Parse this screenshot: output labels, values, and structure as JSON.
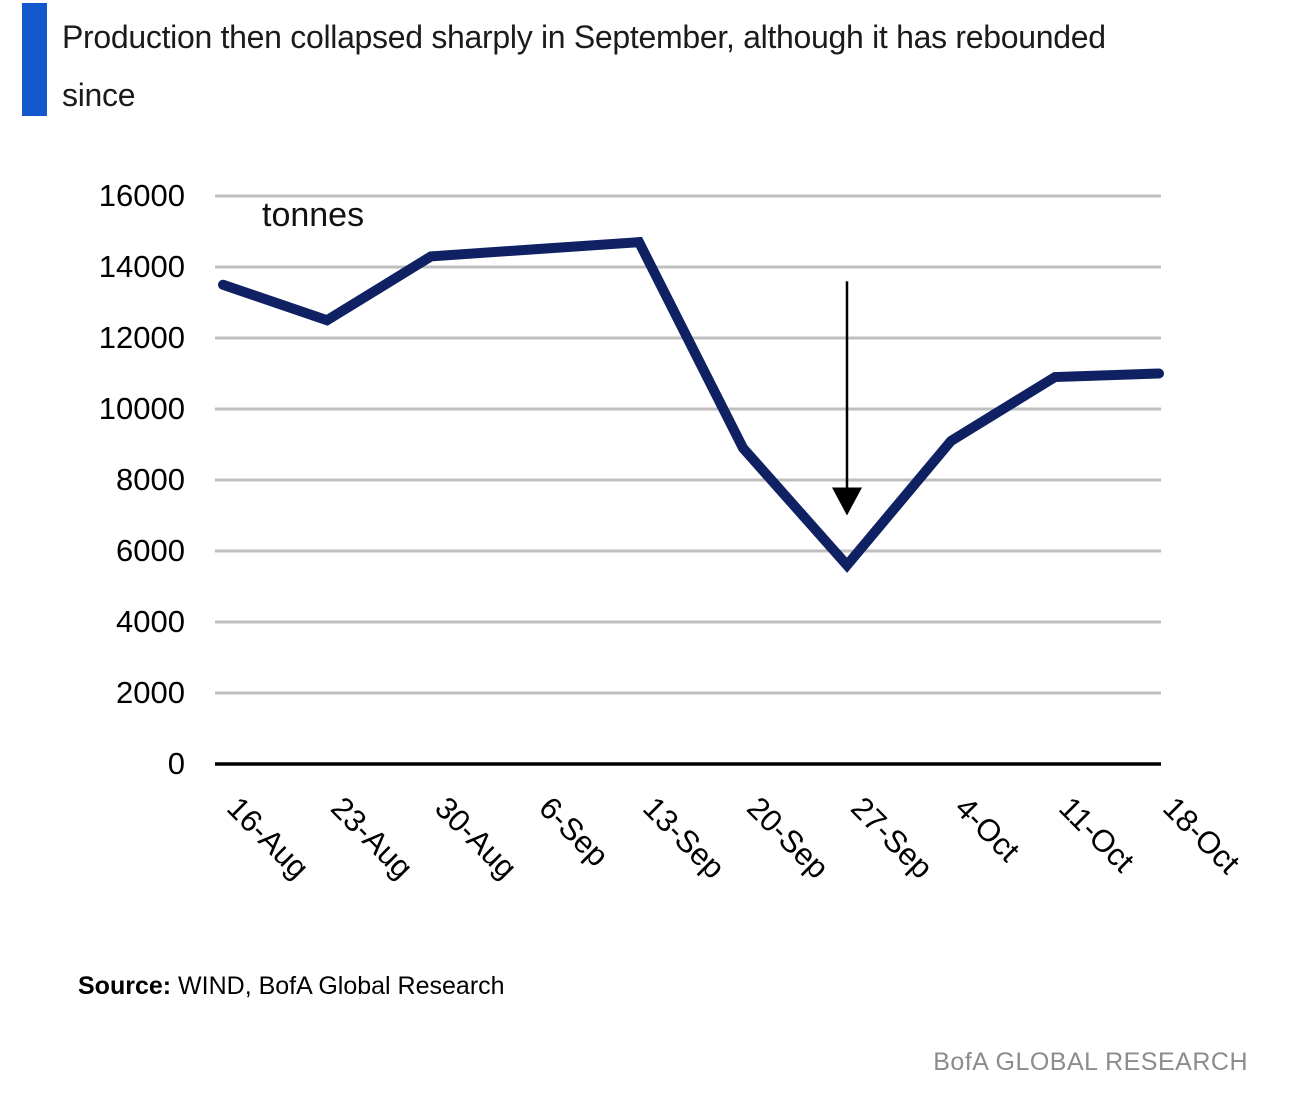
{
  "page": {
    "title": "Production then collapsed sharply in September, although it has rebounded since",
    "source_label": "Source:",
    "source_text": " WIND, BofA Global Research",
    "brand": "BofA GLOBAL RESEARCH"
  },
  "colors": {
    "accent_bar": "#1257cb",
    "line": "#0f2163",
    "gridline": "#bfbfbf",
    "axis_baseline": "#000000",
    "arrow": "#000000",
    "brand_text": "#8c8c8c"
  },
  "chart_data": {
    "type": "line",
    "title": "Production then collapsed sharply in September, although it has rebounded since",
    "unit_label": "tonnes",
    "categories": [
      "16-Aug",
      "23-Aug",
      "30-Aug",
      "6-Sep",
      "13-Sep",
      "20-Sep",
      "27-Sep",
      "4-Oct",
      "11-Oct",
      "18-Oct"
    ],
    "values": [
      13500,
      12500,
      14300,
      14500,
      14700,
      8900,
      5600,
      9100,
      10900,
      11000
    ],
    "xlabel": "",
    "ylabel": "tonnes",
    "ylim": [
      0,
      16000
    ],
    "ytick_step": 2000,
    "grid": "horizontal",
    "legend": "none",
    "annotation": {
      "type": "down-arrow",
      "category": "27-Sep",
      "from_value": 13600,
      "to_value": 7000
    }
  }
}
